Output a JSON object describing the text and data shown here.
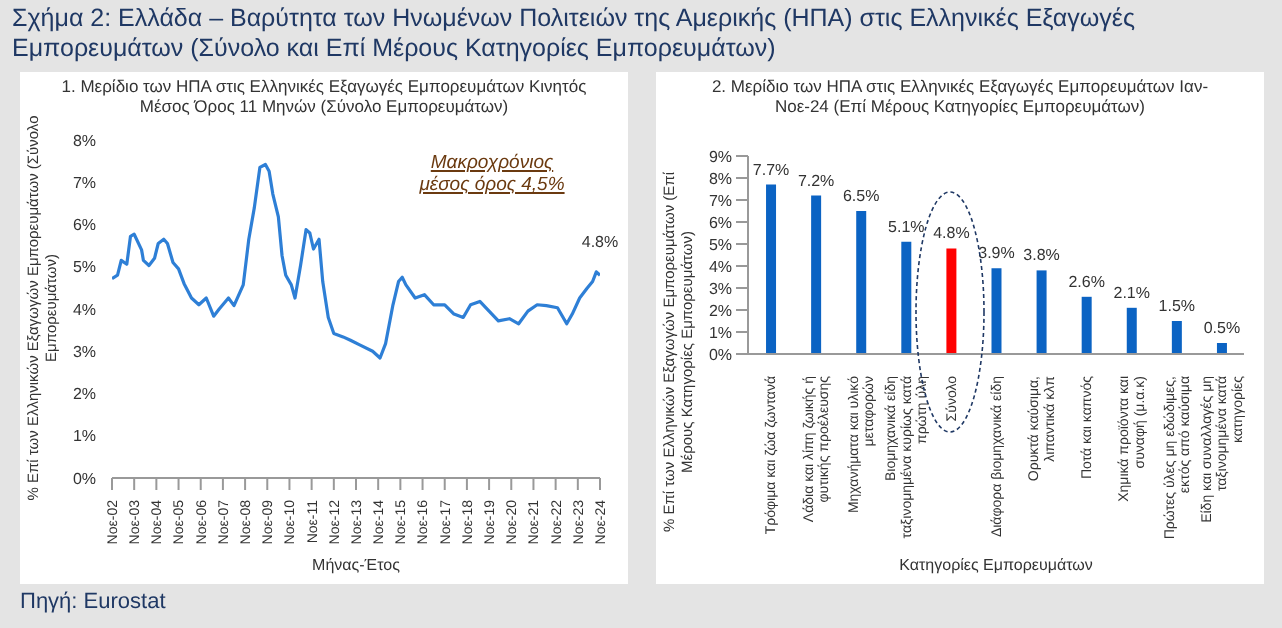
{
  "chart_data": [
    {
      "type": "line",
      "title": "1. Μερίδιο των ΗΠΑ στις Ελληνικές Εξαγωγές Εμπορευμάτων Κινητός Μέσος Όρος 11 Μηνών (Σύνολο Εμπορευμάτων)",
      "xlabel": "Μήνας-Έτος",
      "ylabel": "% Επί των Ελληνικών Εξαγωγών Εμπορευμάτων (Σύνολο Εμπορευμάτων)",
      "annotations": [
        "Σχήμα 2: Ελλάδα – Βαρύτητα των Ηνωμένων Πολιτειών της Αμερικής (ΗΠΑ) στις Ελληνικές Εξαγωγές Εμπορευμάτων (Σύνολο και Επί Μέρους Κατηγορίες Εμπορευμάτων)",
        "Μακροχρόνιος μέσος όρος 4,5%",
        {
          "text": "4.8%",
          "x": "2024-11",
          "y": 4.8
        },
        "Πηγή: Eurostat"
      ],
      "x": [
        "2002-11",
        "2003-02",
        "2003-04",
        "2003-07",
        "2003-09",
        "2003-11",
        "2004-03",
        "2004-04",
        "2004-07",
        "2004-10",
        "2004-12",
        "2005-03",
        "2005-05",
        "2005-08",
        "2005-11",
        "2006-02",
        "2006-06",
        "2006-10",
        "2007-02",
        "2007-06",
        "2007-09",
        "2008-02",
        "2008-05",
        "2008-10",
        "2009-01",
        "2009-04",
        "2009-07",
        "2009-10",
        "2009-12",
        "2010-02",
        "2010-05",
        "2010-07",
        "2010-09",
        "2010-12",
        "2011-02",
        "2011-05",
        "2011-08",
        "2011-10",
        "2011-12",
        "2012-03",
        "2012-05",
        "2012-08",
        "2012-11",
        "2013-04",
        "2013-08",
        "2014-01",
        "2014-08",
        "2014-12",
        "2015-03",
        "2015-07",
        "2015-10",
        "2015-12",
        "2016-02",
        "2016-07",
        "2016-12",
        "2017-05",
        "2017-11",
        "2018-04",
        "2018-09",
        "2019-01",
        "2019-06",
        "2019-11",
        "2020-04",
        "2020-10",
        "2021-03",
        "2021-08",
        "2022-01",
        "2022-06",
        "2022-12",
        "2023-05",
        "2023-08",
        "2023-12",
        "2024-04",
        "2024-07",
        "2024-09",
        "2024-11"
      ],
      "series": [
        {
          "color": "#2e7fd6",
          "values": [
            4.72,
            4.8,
            5.15,
            5.06,
            5.72,
            5.77,
            5.4,
            5.15,
            5.03,
            5.2,
            5.55,
            5.65,
            5.55,
            5.1,
            4.95,
            4.6,
            4.26,
            4.1,
            4.26,
            3.83,
            4.0,
            4.26,
            4.08,
            4.57,
            5.65,
            6.4,
            7.35,
            7.42,
            7.26,
            6.72,
            6.18,
            5.26,
            4.8,
            4.57,
            4.26,
            5.03,
            5.88,
            5.8,
            5.42,
            5.65,
            4.65,
            3.8,
            3.42,
            3.34,
            3.26,
            3.15,
            3.0,
            2.84,
            3.18,
            4.1,
            4.65,
            4.75,
            4.57,
            4.26,
            4.34,
            4.1,
            4.1,
            3.88,
            3.8,
            4.1,
            4.18,
            3.95,
            3.72,
            3.77,
            3.65,
            3.95,
            4.1,
            4.08,
            4.03,
            3.65,
            3.88,
            4.26,
            4.49,
            4.65,
            4.88,
            4.8
          ]
        }
      ],
      "xlim": [
        "2002-11",
        "2024-11"
      ],
      "xticks": [
        {
          "value": "2002-11",
          "label": "Νοε-02"
        },
        {
          "value": "2003-11",
          "label": "Νοε-03"
        },
        {
          "value": "2004-11",
          "label": "Νοε-04"
        },
        {
          "value": "2005-11",
          "label": "Νοε-05"
        },
        {
          "value": "2006-11",
          "label": "Νοε-06"
        },
        {
          "value": "2007-11",
          "label": "Νοε-07"
        },
        {
          "value": "2008-11",
          "label": "Νοε-08"
        },
        {
          "value": "2009-11",
          "label": "Νοε-09"
        },
        {
          "value": "2010-11",
          "label": "Νοε-10"
        },
        {
          "value": "2011-11",
          "label": "Νοε-11"
        },
        {
          "value": "2012-11",
          "label": "Νοε-12"
        },
        {
          "value": "2013-11",
          "label": "Νοε-13"
        },
        {
          "value": "2014-11",
          "label": "Νοε-14"
        },
        {
          "value": "2015-11",
          "label": "Νοε-15"
        },
        {
          "value": "2016-11",
          "label": "Νοε-16"
        },
        {
          "value": "2017-11",
          "label": "Νοε-17"
        },
        {
          "value": "2018-11",
          "label": "Νοε-18"
        },
        {
          "value": "2019-11",
          "label": "Νοε-19"
        },
        {
          "value": "2020-11",
          "label": "Νοε-20"
        },
        {
          "value": "2021-11",
          "label": "Νοε-21"
        },
        {
          "value": "2022-11",
          "label": "Νοε-22"
        },
        {
          "value": "2023-11",
          "label": "Νοε-23"
        },
        {
          "value": "2024-11",
          "label": "Νοε-24"
        }
      ],
      "ylim": [
        0,
        8
      ],
      "yticks": [
        {
          "value": 0,
          "label": "0%"
        },
        {
          "value": 1,
          "label": "1%"
        },
        {
          "value": 2,
          "label": "2%"
        },
        {
          "value": 3,
          "label": "3%"
        },
        {
          "value": 4,
          "label": "4%"
        },
        {
          "value": 5,
          "label": "5%"
        },
        {
          "value": 6,
          "label": "6%"
        },
        {
          "value": 7,
          "label": "7%"
        },
        {
          "value": 8,
          "label": "8%"
        }
      ]
    },
    {
      "type": "bar",
      "title": "2. Μερίδιο των ΗΠΑ στις Ελληνικές Εξαγωγές Εμπορευμάτων Ιαν-Νοε-24 (Επί Μέρους Κατηγορίες Εμπορευμάτων)",
      "xlabel": "Κατηγορίες Εμπορευμάτων",
      "ylabel": "% Επί των Ελληνικών Εξαγωγών Εμπορευμάτων (Επί Μέρους Κατηγορίες Εμπορευμάτων)",
      "categories": [
        "Τρόφιμα και ζώα ζωντανά",
        "Λάδια και λίπη ζωικής ή φυτικής προέλευσης",
        "Μηχανήματα και υλικό μεταφορών",
        "Βιομηχανικά είδη ταξινομημένα κυρίως κατά πρώτη ύλη",
        "Σύνολο",
        "Διάφορα βιομηχανικά είδη",
        "Ορυκτά καύσιμα, λιπαντικά κλπ",
        "Ποτά και καπνός",
        "Χημικά προϊόντα και συναφή (μ.α.κ)",
        "Πρώτες ύλες μη εδώδιμες, εκτός από καύσιμα",
        "Είδη και συναλλαγές μη ταξινομημένα κατά κατηγορίες"
      ],
      "values": [
        7.7,
        7.2,
        6.5,
        5.1,
        4.8,
        3.9,
        3.8,
        2.6,
        2.1,
        1.5,
        0.5
      ],
      "colors": [
        "#0b63c3",
        "#0b63c3",
        "#0b63c3",
        "#0b63c3",
        "#ff0000",
        "#0b63c3",
        "#0b63c3",
        "#0b63c3",
        "#0b63c3",
        "#0b63c3",
        "#0b63c3"
      ],
      "value_labels": [
        "7.7%",
        "7.2%",
        "6.5%",
        "5.1%",
        "4.8%",
        "3.9%",
        "3.8%",
        "2.6%",
        "2.1%",
        "1.5%",
        "0.5%"
      ],
      "ylim": [
        0,
        9
      ],
      "yticks": [
        {
          "value": 0,
          "label": "0%"
        },
        {
          "value": 1,
          "label": "1%"
        },
        {
          "value": 2,
          "label": "2%"
        },
        {
          "value": 3,
          "label": "3%"
        },
        {
          "value": 4,
          "label": "4%"
        },
        {
          "value": 5,
          "label": "5%"
        },
        {
          "value": 6,
          "label": "6%"
        },
        {
          "value": 7,
          "label": "7%"
        },
        {
          "value": 8,
          "label": "8%"
        },
        {
          "value": 9,
          "label": "9%"
        }
      ]
    }
  ]
}
